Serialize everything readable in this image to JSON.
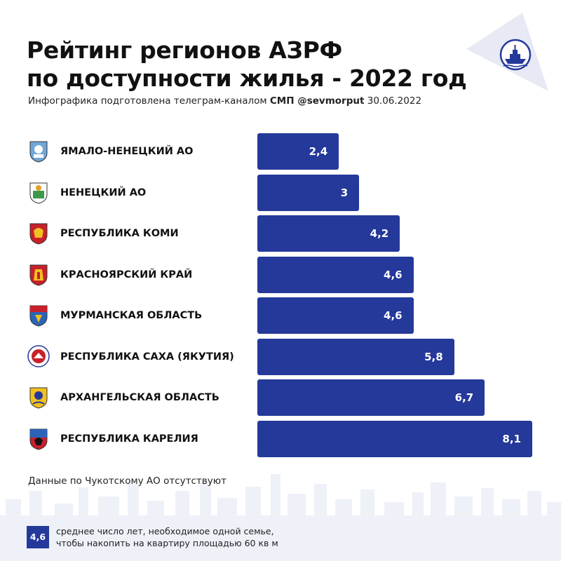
{
  "header": {
    "title_line1": "Рейтинг регионов АЗРФ",
    "title_line2": "по доступности жилья - 2022 год",
    "subtitle_prefix": "Инфографика подготовлена телеграм-каналом",
    "subtitle_channel": "СМП @sevmorput",
    "subtitle_date": "30.06.2022"
  },
  "chart_data": {
    "type": "bar",
    "orientation": "horizontal",
    "categories": [
      "ЯМАЛО-НЕНЕЦКИЙ АО",
      "НЕНЕЦКИЙ АО",
      "РЕСПУБЛИКА КОМИ",
      "КРАСНОЯРСКИЙ КРАЙ",
      "МУРМАНСКАЯ ОБЛАСТЬ",
      "РЕСПУБЛИКА САХА (ЯКУТИЯ)",
      "АРХАНГЕЛЬСКАЯ ОБЛАСТЬ",
      "РЕСПУБЛИКА КАРЕЛИЯ"
    ],
    "values": [
      2.4,
      3,
      4.2,
      4.6,
      4.6,
      5.8,
      6.7,
      8.1
    ],
    "value_labels": [
      "2,4",
      "3",
      "4,2",
      "4,6",
      "4,6",
      "5,8",
      "6,7",
      "8,1"
    ],
    "bar_color": "#25399a",
    "xlim": [
      0,
      8.1
    ]
  },
  "regions": [
    {
      "name": "ЯМАЛО-НЕНЕЦКИЙ АО",
      "emblem": "yamal-nenets-coat-of-arms-icon"
    },
    {
      "name": "НЕНЕЦКИЙ АО",
      "emblem": "nenets-coat-of-arms-icon"
    },
    {
      "name": "РЕСПУБЛИКА КОМИ",
      "emblem": "komi-coat-of-arms-icon"
    },
    {
      "name": "КРАСНОЯРСКИЙ КРАЙ",
      "emblem": "krasnoyarsk-coat-of-arms-icon"
    },
    {
      "name": "МУРМАНСКАЯ ОБЛАСТЬ",
      "emblem": "murmansk-coat-of-arms-icon"
    },
    {
      "name": "РЕСПУБЛИКА САХА (ЯКУТИЯ)",
      "emblem": "sakha-coat-of-arms-icon"
    },
    {
      "name": "АРХАНГЕЛЬСКАЯ ОБЛАСТЬ",
      "emblem": "arkhangelsk-coat-of-arms-icon"
    },
    {
      "name": "РЕСПУБЛИКА КАРЕЛИЯ",
      "emblem": "karelia-coat-of-arms-icon"
    }
  ],
  "footer": {
    "note": "Данные по Чукотскому АО отсутствуют",
    "legend_value": "4,6",
    "legend_line1": "среднее число лет, необходимое одной семье,",
    "legend_line2": "чтобы накопить на квартиру площадью 60 кв м"
  },
  "colors": {
    "accent": "#25399a",
    "background_decor": "#e7eaf4",
    "skyline": "#eef1f8"
  },
  "icons": {
    "logo": "icebreaker-ship-logo-icon"
  }
}
